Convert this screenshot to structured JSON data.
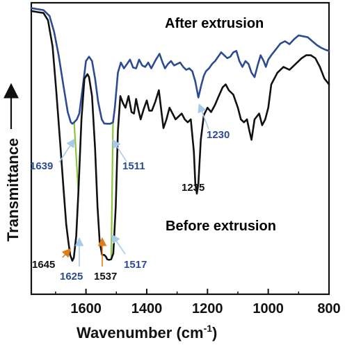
{
  "chart_data": {
    "type": "line",
    "xlabel": "Wavenumber (cm",
    "xlabel_sup": "-1",
    "xlabel_tail": ")",
    "ylabel": "Transmittance",
    "xlim": [
      1780,
      800
    ],
    "x_reversed": true,
    "ylim": [
      0,
      1
    ],
    "y_ticks_shown": false,
    "grid": false,
    "x_ticks": [
      1600,
      1400,
      1200,
      1000,
      800
    ],
    "x_tick_labels": [
      "1600",
      "1400",
      "1200",
      "1000",
      "800"
    ],
    "series": [
      {
        "name": "After extrusion",
        "color": "#2b4b93",
        "label_color": "#2b4b93",
        "x": [
          1780,
          1760,
          1740,
          1720,
          1705,
          1690,
          1675,
          1660,
          1650,
          1645,
          1639,
          1630,
          1622,
          1612,
          1600,
          1590,
          1580,
          1570,
          1560,
          1548,
          1540,
          1530,
          1520,
          1511,
          1505,
          1495,
          1485,
          1475,
          1465,
          1455,
          1445,
          1435,
          1425,
          1415,
          1405,
          1395,
          1385,
          1370,
          1358,
          1348,
          1340,
          1330,
          1320,
          1310,
          1300,
          1290,
          1280,
          1270,
          1260,
          1250,
          1240,
          1230,
          1220,
          1212,
          1205,
          1195,
          1185,
          1175,
          1165,
          1155,
          1145,
          1135,
          1125,
          1115,
          1105,
          1095,
          1085,
          1075,
          1065,
          1055,
          1045,
          1035,
          1025,
          1015,
          1008,
          1000,
          990,
          975,
          960,
          945,
          930,
          915,
          900,
          885,
          870,
          855,
          840,
          825,
          810,
          800
        ],
        "y": [
          0.982,
          0.978,
          0.975,
          0.955,
          0.9,
          0.82,
          0.72,
          0.625,
          0.59,
          0.585,
          0.59,
          0.6,
          0.62,
          0.7,
          0.8,
          0.815,
          0.8,
          0.74,
          0.66,
          0.6,
          0.586,
          0.585,
          0.585,
          0.59,
          0.64,
          0.76,
          0.795,
          0.775,
          0.79,
          0.805,
          0.778,
          0.775,
          0.805,
          0.785,
          0.78,
          0.795,
          0.775,
          0.805,
          0.825,
          0.795,
          0.775,
          0.79,
          0.8,
          0.785,
          0.79,
          0.795,
          0.78,
          0.77,
          0.775,
          0.765,
          0.73,
          0.675,
          0.72,
          0.75,
          0.765,
          0.775,
          0.79,
          0.8,
          0.815,
          0.83,
          0.82,
          0.81,
          0.815,
          0.83,
          0.835,
          0.8,
          0.78,
          0.8,
          0.79,
          0.76,
          0.745,
          0.785,
          0.82,
          0.8,
          0.78,
          0.805,
          0.82,
          0.84,
          0.86,
          0.868,
          0.858,
          0.875,
          0.888,
          0.885,
          0.882,
          0.868,
          0.855,
          0.845,
          0.838,
          0.835
        ]
      },
      {
        "name": "Before extrusion",
        "color": "#111111",
        "label_color": "#111111",
        "x": [
          1780,
          1760,
          1740,
          1725,
          1710,
          1698,
          1685,
          1673,
          1665,
          1658,
          1652,
          1645,
          1640,
          1632,
          1625,
          1615,
          1605,
          1595,
          1590,
          1580,
          1570,
          1562,
          1555,
          1547,
          1540,
          1535,
          1530,
          1524,
          1517,
          1510,
          1502,
          1495,
          1487,
          1478,
          1470,
          1460,
          1450,
          1442,
          1435,
          1428,
          1420,
          1410,
          1400,
          1392,
          1383,
          1372,
          1360,
          1352,
          1345,
          1335,
          1325,
          1315,
          1305,
          1295,
          1285,
          1275,
          1265,
          1255,
          1245,
          1240,
          1235,
          1230,
          1222,
          1212,
          1200,
          1188,
          1175,
          1165,
          1150,
          1140,
          1130,
          1115,
          1100,
          1090,
          1080,
          1070,
          1062,
          1055,
          1045,
          1030,
          1020,
          1010,
          1000,
          990,
          970,
          950,
          930,
          910,
          890,
          875,
          860,
          845,
          830,
          815,
          800
        ],
        "y": [
          0.972,
          0.968,
          0.965,
          0.94,
          0.85,
          0.7,
          0.52,
          0.35,
          0.24,
          0.18,
          0.135,
          0.115,
          0.125,
          0.2,
          0.35,
          0.6,
          0.74,
          0.755,
          0.745,
          0.68,
          0.5,
          0.3,
          0.18,
          0.135,
          0.135,
          0.13,
          0.12,
          0.118,
          0.12,
          0.14,
          0.3,
          0.56,
          0.68,
          0.655,
          0.64,
          0.68,
          0.625,
          0.62,
          0.67,
          0.635,
          0.6,
          0.635,
          0.665,
          0.63,
          0.63,
          0.66,
          0.7,
          0.63,
          0.57,
          0.6,
          0.64,
          0.62,
          0.6,
          0.61,
          0.62,
          0.6,
          0.59,
          0.6,
          0.49,
          0.38,
          0.345,
          0.38,
          0.53,
          0.615,
          0.64,
          0.625,
          0.65,
          0.675,
          0.71,
          0.72,
          0.7,
          0.685,
          0.64,
          0.6,
          0.59,
          0.6,
          0.56,
          0.53,
          0.6,
          0.62,
          0.58,
          0.6,
          0.64,
          0.72,
          0.76,
          0.78,
          0.77,
          0.79,
          0.81,
          0.82,
          0.82,
          0.81,
          0.78,
          0.74,
          0.72
        ]
      }
    ],
    "annotations": [
      {
        "text": "1639",
        "color": "#2b4b93",
        "arrow_color": "#a9c9ea"
      },
      {
        "text": "1511",
        "color": "#2b4b93",
        "arrow_color": "#a9c9ea"
      },
      {
        "text": "1230",
        "color": "#2b4b93",
        "arrow_color": "#a9c9ea"
      },
      {
        "text": "1235",
        "color": "#111111"
      },
      {
        "text": "1645",
        "color": "#111111",
        "arrow_color": "#e07b1d"
      },
      {
        "text": "1625",
        "color": "#2b4b93",
        "arrow_color": "#a9c9ea"
      },
      {
        "text": "1537",
        "color": "#111111",
        "arrow_color": "#e07b1d"
      },
      {
        "text": "1517",
        "color": "#2b4b93",
        "arrow_color": "#a9c9ea"
      }
    ],
    "shift_lines": [
      {
        "from": 1639,
        "to": 1625,
        "color": "#8cc63f"
      },
      {
        "from": 1511,
        "to": 1517,
        "color": "#8cc63f"
      }
    ]
  }
}
